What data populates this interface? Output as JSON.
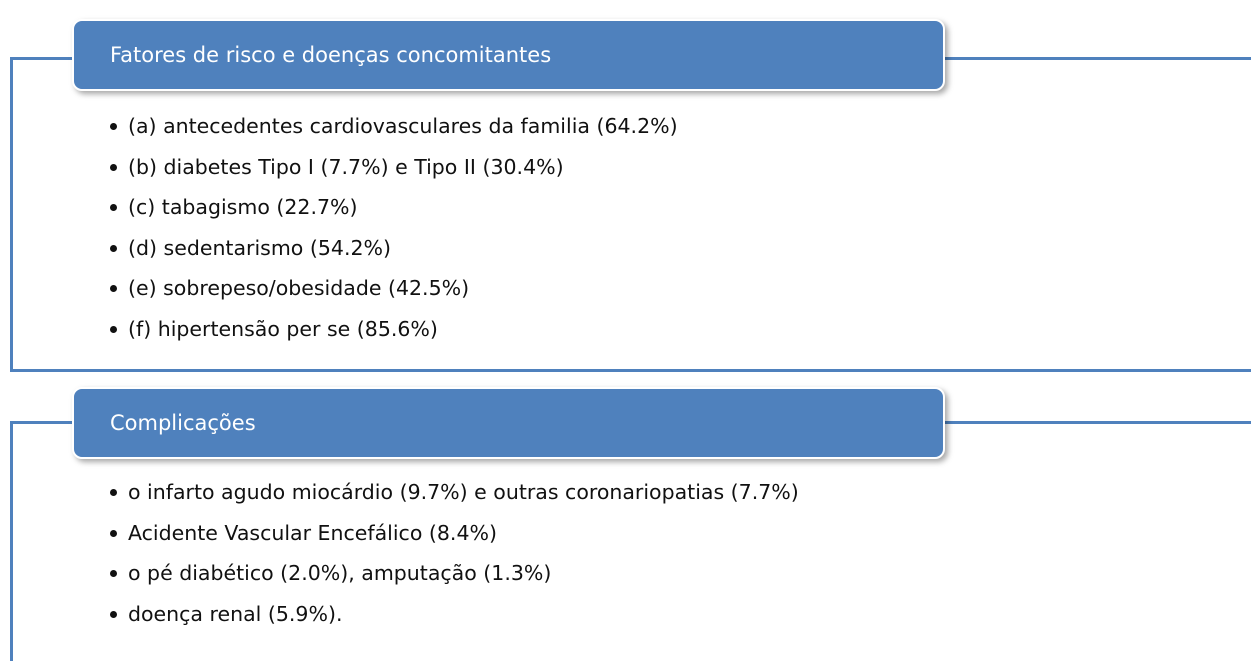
{
  "sections": [
    {
      "title": "Fatores de risco e doenças concomitantes",
      "items": [
        "(a) antecedentes cardiovasculares da familia (64.2%)",
        "(b) diabetes Tipo I (7.7%) e Tipo II (30.4%)",
        "(c) tabagismo (22.7%)",
        "(d) sedentarismo (54.2%)",
        "(e) sobrepeso/obesidade (42.5%)",
        "(f) hipertensão per se (85.6%)"
      ]
    },
    {
      "title": "Complicações",
      "items": [
        "o infarto agudo miocárdio (9.7%) e outras coronariopatias (7.7%)",
        "Acidente Vascular Encefálico (8.4%)",
        "o pé diabético (2.0%), amputação (1.3%)",
        "doença renal (5.9%)."
      ]
    }
  ]
}
